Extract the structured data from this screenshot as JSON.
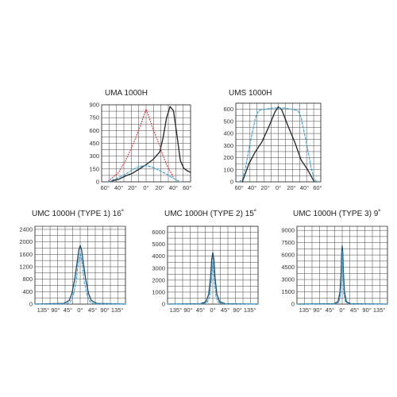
{
  "chart_data": [
    {
      "type": "line",
      "title": "UMA 1000H",
      "ylim": [
        0,
        900
      ],
      "y_ticks": [
        0,
        150,
        300,
        450,
        600,
        750,
        900
      ],
      "xlim": [
        -65,
        65
      ],
      "x_ticks": [
        -60,
        -40,
        -20,
        0,
        20,
        40,
        60
      ],
      "x_tick_labels": [
        "60°",
        "40°",
        "20°",
        "0°",
        "20°",
        "40°",
        "60°"
      ],
      "grid": true,
      "series": [
        {
          "color": "#222222",
          "style": "solid",
          "x": [
            -50,
            -40,
            -30,
            -20,
            -10,
            0,
            10,
            20,
            25,
            30,
            35,
            40,
            45,
            50,
            55,
            60,
            65
          ],
          "y": [
            10,
            30,
            70,
            100,
            150,
            200,
            260,
            350,
            520,
            750,
            880,
            830,
            550,
            250,
            160,
            130,
            110
          ]
        },
        {
          "color": "#e03030",
          "style": "dotted",
          "x": [
            -55,
            -40,
            -30,
            -20,
            -10,
            0,
            10,
            20,
            25,
            30,
            40
          ],
          "y": [
            10,
            110,
            250,
            420,
            620,
            850,
            620,
            420,
            300,
            200,
            50
          ]
        },
        {
          "color": "#3aa0d8",
          "style": "dashed",
          "x": [
            -55,
            -40,
            -30,
            -20,
            -10,
            0,
            10,
            20,
            30,
            40,
            50
          ],
          "y": [
            0,
            50,
            90,
            140,
            180,
            190,
            170,
            130,
            90,
            40,
            0
          ]
        }
      ]
    },
    {
      "type": "line",
      "title": "UMS 1000H",
      "ylim": [
        0,
        650
      ],
      "y_ticks": [
        0,
        100,
        200,
        300,
        400,
        500,
        600
      ],
      "xlim": [
        -65,
        65
      ],
      "x_ticks": [
        -60,
        -40,
        -20,
        0,
        20,
        40,
        60
      ],
      "x_tick_labels": [
        "60°",
        "40°",
        "20°",
        "0°",
        "20°",
        "40°",
        "60°"
      ],
      "grid": true,
      "series": [
        {
          "color": "#222222",
          "style": "solid",
          "x": [
            -55,
            -45,
            -35,
            -25,
            -15,
            -5,
            0,
            5,
            15,
            25,
            35,
            45,
            55
          ],
          "y": [
            0,
            150,
            250,
            330,
            450,
            580,
            620,
            600,
            460,
            330,
            180,
            100,
            0
          ]
        },
        {
          "color": "#3aa0d8",
          "style": "dashed",
          "x": [
            -60,
            -55,
            -50,
            -45,
            -40,
            -35,
            -30,
            -20,
            -10,
            0,
            10,
            20,
            30,
            35,
            40,
            45,
            50,
            55,
            60
          ],
          "y": [
            0,
            20,
            120,
            270,
            400,
            530,
            590,
            600,
            610,
            610,
            610,
            600,
            590,
            530,
            400,
            270,
            120,
            20,
            0
          ]
        }
      ]
    },
    {
      "type": "line",
      "title": "UMC 1000H (TYPE 1) 16˚",
      "ylim": [
        0,
        2500
      ],
      "y_ticks": [
        0,
        400,
        800,
        1200,
        1600,
        2000,
        2400
      ],
      "xlim": [
        -165,
        165
      ],
      "x_ticks": [
        -135,
        -90,
        -45,
        0,
        45,
        90,
        135
      ],
      "x_tick_labels": [
        "135°",
        "90°",
        "45°",
        "0°",
        "45°",
        "90°",
        "135°"
      ],
      "grid": true,
      "series": [
        {
          "color": "#1f4a6a",
          "style": "solid",
          "x": [
            -165,
            -60,
            -40,
            -30,
            -20,
            -10,
            -5,
            0,
            5,
            10,
            20,
            30,
            40,
            60,
            165
          ],
          "y": [
            0,
            20,
            120,
            350,
            800,
            1400,
            1750,
            1880,
            1750,
            1400,
            800,
            350,
            120,
            20,
            0
          ]
        },
        {
          "color": "#3aa0d8",
          "style": "dashed",
          "x": [
            -165,
            -50,
            -35,
            -25,
            -15,
            -8,
            0,
            8,
            15,
            25,
            35,
            50,
            165
          ],
          "y": [
            0,
            10,
            80,
            300,
            700,
            1250,
            1650,
            1250,
            700,
            300,
            80,
            10,
            0
          ]
        }
      ]
    },
    {
      "type": "line",
      "title": "UMC 1000H (TYPE 2) 15˚",
      "ylim": [
        0,
        6500
      ],
      "y_ticks": [
        0,
        1000,
        2000,
        3000,
        4000,
        5000,
        6000
      ],
      "xlim": [
        -165,
        165
      ],
      "x_ticks": [
        -135,
        -90,
        -45,
        0,
        45,
        90,
        135
      ],
      "x_tick_labels": [
        "135°",
        "90°",
        "45°",
        "0°",
        "45°",
        "90°",
        "135°"
      ],
      "grid": true,
      "series": [
        {
          "color": "#1f4a6a",
          "style": "solid",
          "x": [
            -165,
            -45,
            -25,
            -15,
            -8,
            -4,
            0,
            4,
            8,
            15,
            25,
            45,
            165
          ],
          "y": [
            0,
            30,
            200,
            800,
            2200,
            3700,
            4300,
            3700,
            2200,
            800,
            200,
            30,
            0
          ]
        },
        {
          "color": "#3aa0d8",
          "style": "dashed",
          "x": [
            -165,
            -40,
            -20,
            -12,
            -6,
            -3,
            0,
            3,
            6,
            12,
            20,
            40,
            165
          ],
          "y": [
            0,
            20,
            150,
            600,
            1800,
            3000,
            3600,
            3000,
            1800,
            600,
            150,
            20,
            0
          ]
        }
      ]
    },
    {
      "type": "line",
      "title": "UMC 1000H (TYPE 3) 9˚",
      "ylim": [
        0,
        9500
      ],
      "y_ticks": [
        0,
        1500,
        3000,
        4500,
        6000,
        7500,
        9000
      ],
      "xlim": [
        -165,
        165
      ],
      "x_ticks": [
        -135,
        -90,
        -45,
        0,
        45,
        90,
        135
      ],
      "x_tick_labels": [
        "135°",
        "90°",
        "45°",
        "0°",
        "45°",
        "90°",
        "135°"
      ],
      "grid": true,
      "series": [
        {
          "color": "#1f4a6a",
          "style": "solid",
          "x": [
            -165,
            -30,
            -15,
            -8,
            -4,
            -2,
            0,
            2,
            4,
            8,
            15,
            30,
            165
          ],
          "y": [
            0,
            50,
            300,
            1500,
            4000,
            6300,
            7100,
            6300,
            4000,
            1500,
            300,
            50,
            0
          ]
        },
        {
          "color": "#3aa0d8",
          "style": "dashed",
          "x": [
            -165,
            -25,
            -12,
            -6,
            -3,
            -1,
            0,
            1,
            3,
            6,
            12,
            25,
            165
          ],
          "y": [
            0,
            30,
            250,
            1200,
            3500,
            5600,
            6500,
            5600,
            3500,
            1200,
            250,
            30,
            0
          ]
        }
      ]
    }
  ]
}
